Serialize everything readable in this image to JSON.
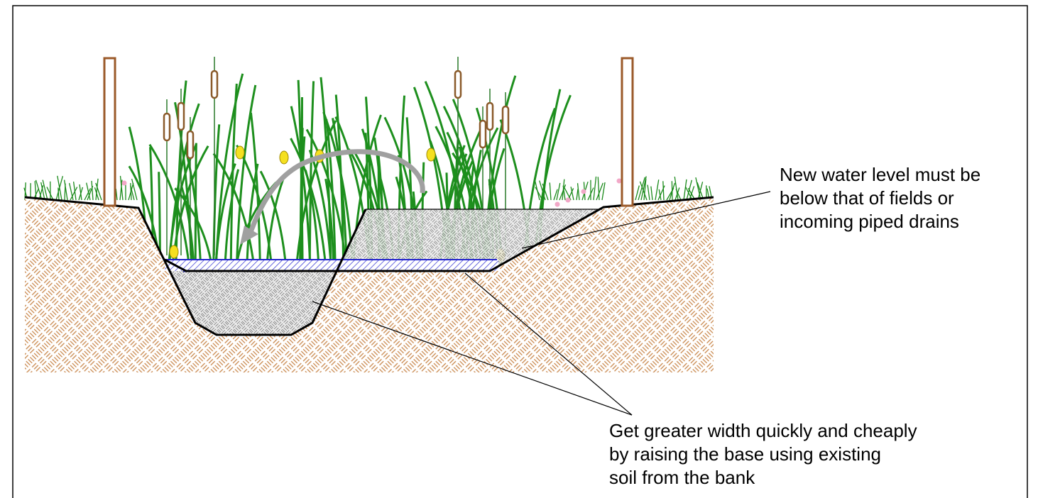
{
  "annotations": [
    {
      "lines": [
        "New water level must be",
        "below that of fields or",
        "incoming piped drains"
      ]
    },
    {
      "lines": [
        "Get greater width quickly and cheaply",
        "by raising the base using existing",
        "soil from the bank"
      ]
    }
  ]
}
